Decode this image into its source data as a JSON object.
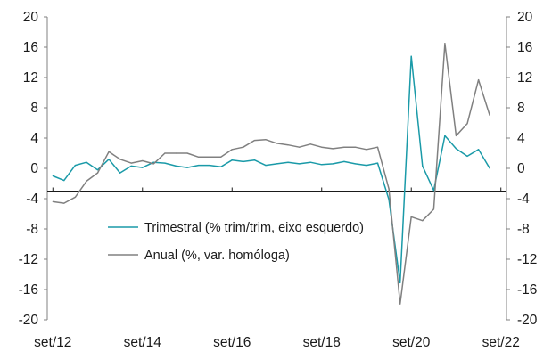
{
  "chart_data": {
    "type": "line",
    "title": "",
    "xlabel": "",
    "ylabel": "",
    "ylim_left": [
      -20,
      20
    ],
    "ylim_right": [
      -20,
      20
    ],
    "yticks": [
      -20,
      -16,
      -12,
      -8,
      -4,
      0,
      4,
      8,
      12,
      16,
      20
    ],
    "x_tick_labels": [
      "set/12",
      "set/14",
      "set/16",
      "set/18",
      "set/20",
      "set/22"
    ],
    "x_tick_dates": [
      "2012-09",
      "2014-09",
      "2016-09",
      "2018-09",
      "2020-09",
      "2022-09"
    ],
    "x": [
      "2012-09",
      "2012-12",
      "2013-03",
      "2013-06",
      "2013-09",
      "2013-12",
      "2014-03",
      "2014-06",
      "2014-09",
      "2014-12",
      "2015-03",
      "2015-06",
      "2015-09",
      "2015-12",
      "2016-03",
      "2016-06",
      "2016-09",
      "2016-12",
      "2017-03",
      "2017-06",
      "2017-09",
      "2017-12",
      "2018-03",
      "2018-06",
      "2018-09",
      "2018-12",
      "2019-03",
      "2019-06",
      "2019-09",
      "2019-12",
      "2020-03",
      "2020-06",
      "2020-09",
      "2020-12",
      "2021-03",
      "2021-06",
      "2021-09",
      "2021-12",
      "2022-03",
      "2022-06",
      "2022-09"
    ],
    "series": [
      {
        "name": "Trimestral (% trim/trim, eixo esquerdo)",
        "axis": "left",
        "color": "#1a9aa8",
        "values": [
          -1.0,
          -1.6,
          0.4,
          0.8,
          -0.2,
          1.2,
          -0.6,
          0.3,
          0.1,
          0.8,
          0.7,
          0.3,
          0.1,
          0.4,
          0.4,
          0.2,
          1.1,
          0.9,
          1.1,
          0.4,
          0.6,
          0.8,
          0.6,
          0.8,
          0.5,
          0.6,
          0.9,
          0.6,
          0.4,
          0.7,
          -4.1,
          -15.1,
          14.8,
          0.3,
          -2.9,
          4.3,
          2.6,
          1.6,
          2.5,
          0.0,
          null
        ]
      },
      {
        "name": "Anual (%, var. homóloga)",
        "axis": "right",
        "color": "#808080",
        "values": [
          -4.4,
          -4.6,
          -3.8,
          -1.7,
          -0.6,
          2.2,
          1.2,
          0.7,
          1.0,
          0.6,
          2.0,
          2.0,
          2.0,
          1.5,
          1.5,
          1.5,
          2.5,
          2.8,
          3.7,
          3.8,
          3.3,
          3.1,
          2.8,
          3.2,
          2.8,
          2.6,
          2.8,
          2.8,
          2.5,
          2.8,
          -2.7,
          -17.9,
          -6.4,
          -6.9,
          -5.4,
          16.5,
          4.3,
          5.9,
          11.7,
          7.0,
          null
        ]
      }
    ],
    "legend_position": "center-left",
    "grid": false
  }
}
